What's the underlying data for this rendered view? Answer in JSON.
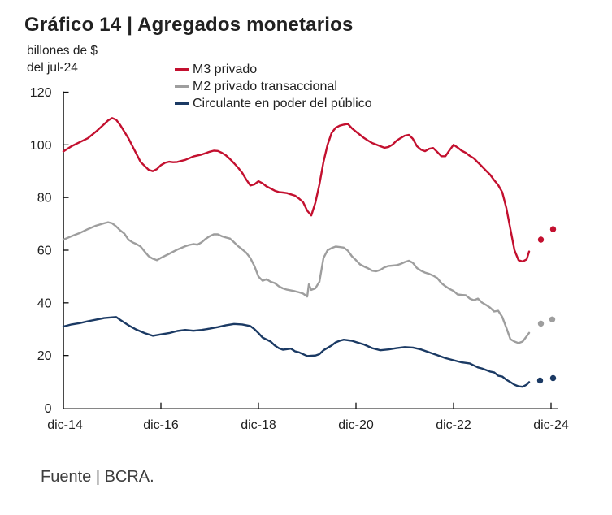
{
  "chart_data": {
    "type": "line",
    "title": "Gráfico 14 | Agregados monetarios",
    "unit_line1": "billones de $",
    "unit_line2": "del jul-24",
    "source": "Fuente | BCRA.",
    "grid": "off",
    "legend_position": "top-inside",
    "ylim": [
      0,
      120
    ],
    "y_ticks": [
      0,
      20,
      40,
      60,
      80,
      100,
      120
    ],
    "x_tick_labels": [
      "dic-14",
      "dic-16",
      "dic-18",
      "dic-20",
      "dic-22",
      "dic-24"
    ],
    "x_tick_months": [
      0,
      24,
      48,
      72,
      96,
      120
    ],
    "x_encoding": "x values in points are months elapsed since dic-14 (0 = dic-14, 120 = dic-24); monthly frequency",
    "axis_color": "#0d0d0d",
    "series": [
      {
        "name": "M3 privado",
        "color": "#c3102f",
        "points": [
          [
            0,
            97.5
          ],
          [
            2,
            99.5
          ],
          [
            4,
            101
          ],
          [
            6,
            102.5
          ],
          [
            8,
            105
          ],
          [
            10,
            107.8
          ],
          [
            11,
            109.3
          ],
          [
            12,
            110.2
          ],
          [
            13,
            109.5
          ],
          [
            14,
            107.5
          ],
          [
            15,
            105
          ],
          [
            16,
            102.5
          ],
          [
            17,
            99.5
          ],
          [
            18,
            96.5
          ],
          [
            19,
            93.5
          ],
          [
            20,
            92
          ],
          [
            21,
            90.5
          ],
          [
            22,
            90
          ],
          [
            23,
            90.8
          ],
          [
            24,
            92.3
          ],
          [
            25,
            93.2
          ],
          [
            26,
            93.6
          ],
          [
            27,
            93.4
          ],
          [
            28,
            93.5
          ],
          [
            30,
            94.3
          ],
          [
            32,
            95.6
          ],
          [
            34,
            96.3
          ],
          [
            36,
            97.4
          ],
          [
            37,
            97.8
          ],
          [
            38,
            97.7
          ],
          [
            39,
            97
          ],
          [
            40,
            96
          ],
          [
            41,
            94.6
          ],
          [
            42,
            93
          ],
          [
            43,
            91.3
          ],
          [
            44,
            89.4
          ],
          [
            45,
            86.8
          ],
          [
            46,
            84.6
          ],
          [
            47,
            85
          ],
          [
            48,
            86.2
          ],
          [
            49,
            85.4
          ],
          [
            50,
            84.2
          ],
          [
            51,
            83.4
          ],
          [
            52,
            82.6
          ],
          [
            53,
            82.1
          ],
          [
            54,
            81.9
          ],
          [
            55,
            81.7
          ],
          [
            56,
            81.2
          ],
          [
            57,
            80.7
          ],
          [
            58,
            79.6
          ],
          [
            59,
            78.2
          ],
          [
            60,
            75
          ],
          [
            61,
            73.2
          ],
          [
            62,
            78
          ],
          [
            63,
            85
          ],
          [
            64,
            93.5
          ],
          [
            65,
            100
          ],
          [
            66,
            104.5
          ],
          [
            67,
            106.5
          ],
          [
            68,
            107.3
          ],
          [
            69,
            107.7
          ],
          [
            70,
            108
          ],
          [
            71,
            106.3
          ],
          [
            72,
            105
          ],
          [
            73,
            103.8
          ],
          [
            74,
            102.6
          ],
          [
            75,
            101.6
          ],
          [
            76,
            100.7
          ],
          [
            77,
            100.1
          ],
          [
            78,
            99.5
          ],
          [
            79,
            98.9
          ],
          [
            80,
            99.2
          ],
          [
            81,
            100.1
          ],
          [
            82,
            101.6
          ],
          [
            83,
            102.6
          ],
          [
            84,
            103.5
          ],
          [
            85,
            103.8
          ],
          [
            86,
            102.3
          ],
          [
            87,
            99.5
          ],
          [
            88,
            98.2
          ],
          [
            89,
            97.6
          ],
          [
            90,
            98.5
          ],
          [
            91,
            98.8
          ],
          [
            92,
            97.3
          ],
          [
            93,
            95.7
          ],
          [
            94,
            95.7
          ],
          [
            95,
            97.9
          ],
          [
            96,
            100
          ],
          [
            97,
            99
          ],
          [
            98,
            97.8
          ],
          [
            99,
            97
          ],
          [
            100,
            95.8
          ],
          [
            101,
            94.9
          ],
          [
            102,
            93.3
          ],
          [
            103,
            91.8
          ],
          [
            104,
            90.2
          ],
          [
            105,
            88.7
          ],
          [
            106,
            86.6
          ],
          [
            107,
            84.7
          ],
          [
            108,
            82
          ],
          [
            109,
            76
          ],
          [
            110,
            68
          ],
          [
            111,
            60
          ],
          [
            112,
            56.2
          ],
          [
            113,
            55.7
          ],
          [
            114,
            56.5
          ],
          [
            114.6,
            59.5
          ]
        ],
        "forecast_dots": [
          [
            117.5,
            64
          ],
          [
            120.5,
            68
          ]
        ]
      },
      {
        "name": "M2 privado transaccional",
        "color": "#9e9e9e",
        "points": [
          [
            0,
            64
          ],
          [
            2,
            65.3
          ],
          [
            4,
            66.5
          ],
          [
            6,
            68
          ],
          [
            8,
            69.3
          ],
          [
            10,
            70.2
          ],
          [
            11,
            70.6
          ],
          [
            12,
            70.2
          ],
          [
            13,
            69
          ],
          [
            14,
            67.5
          ],
          [
            15,
            66.3
          ],
          [
            16,
            64
          ],
          [
            17,
            63
          ],
          [
            18,
            62.3
          ],
          [
            19,
            61.4
          ],
          [
            20,
            59.5
          ],
          [
            21,
            57.7
          ],
          [
            22,
            56.8
          ],
          [
            23,
            56.2
          ],
          [
            24,
            57.1
          ],
          [
            26,
            58.6
          ],
          [
            28,
            60.2
          ],
          [
            30,
            61.5
          ],
          [
            31,
            62
          ],
          [
            32,
            62.3
          ],
          [
            33,
            62.1
          ],
          [
            34,
            63
          ],
          [
            35,
            64.3
          ],
          [
            36,
            65.3
          ],
          [
            37,
            66
          ],
          [
            38,
            66
          ],
          [
            39,
            65.3
          ],
          [
            40,
            64.8
          ],
          [
            41,
            64.4
          ],
          [
            42,
            63
          ],
          [
            43,
            61.5
          ],
          [
            44,
            60.3
          ],
          [
            45,
            59
          ],
          [
            46,
            57
          ],
          [
            47,
            54
          ],
          [
            48,
            50
          ],
          [
            49,
            48.4
          ],
          [
            50,
            49
          ],
          [
            51,
            48
          ],
          [
            52,
            47.5
          ],
          [
            53,
            46.3
          ],
          [
            54,
            45.5
          ],
          [
            55,
            45
          ],
          [
            56,
            44.7
          ],
          [
            57,
            44.4
          ],
          [
            58,
            44
          ],
          [
            59,
            43.5
          ],
          [
            60,
            42.4
          ],
          [
            60.4,
            47
          ],
          [
            61,
            44.9
          ],
          [
            62,
            45.5
          ],
          [
            63,
            48
          ],
          [
            64,
            57
          ],
          [
            65,
            60
          ],
          [
            66,
            60.8
          ],
          [
            67,
            61.4
          ],
          [
            68,
            61.2
          ],
          [
            69,
            61
          ],
          [
            70,
            59.8
          ],
          [
            71,
            57.7
          ],
          [
            72,
            56.2
          ],
          [
            73,
            54.6
          ],
          [
            74,
            53.8
          ],
          [
            75,
            53.1
          ],
          [
            76,
            52.2
          ],
          [
            77,
            52
          ],
          [
            78,
            52.5
          ],
          [
            79,
            53.5
          ],
          [
            80,
            54
          ],
          [
            82,
            54.3
          ],
          [
            83,
            54.8
          ],
          [
            84,
            55.5
          ],
          [
            85,
            56
          ],
          [
            86,
            55.2
          ],
          [
            87,
            53.2
          ],
          [
            88,
            52.2
          ],
          [
            89,
            51.5
          ],
          [
            90,
            51
          ],
          [
            91,
            50.3
          ],
          [
            92,
            49.4
          ],
          [
            93,
            47.5
          ],
          [
            94,
            46.3
          ],
          [
            95,
            45.3
          ],
          [
            96,
            44.5
          ],
          [
            97,
            43.2
          ],
          [
            98,
            43
          ],
          [
            99,
            42.9
          ],
          [
            100,
            41.6
          ],
          [
            101,
            41
          ],
          [
            102,
            41.6
          ],
          [
            103,
            40.1
          ],
          [
            104,
            39.2
          ],
          [
            105,
            38.2
          ],
          [
            106,
            36.7
          ],
          [
            107,
            37
          ],
          [
            108,
            34.6
          ],
          [
            109,
            30.5
          ],
          [
            110,
            26.2
          ],
          [
            111,
            25.3
          ],
          [
            112,
            24.7
          ],
          [
            113,
            25.3
          ],
          [
            114,
            27.3
          ],
          [
            114.6,
            28.6
          ]
        ],
        "forecast_dots": [
          [
            117.5,
            32.1
          ],
          [
            120.3,
            33.7
          ]
        ]
      },
      {
        "name": "Circulante en poder del público",
        "color": "#1b3a64",
        "points": [
          [
            0,
            31
          ],
          [
            2,
            31.8
          ],
          [
            4,
            32.3
          ],
          [
            6,
            33
          ],
          [
            8,
            33.6
          ],
          [
            10,
            34.2
          ],
          [
            12,
            34.5
          ],
          [
            13,
            34.6
          ],
          [
            14,
            33.5
          ],
          [
            16,
            31.5
          ],
          [
            18,
            29.8
          ],
          [
            20,
            28.5
          ],
          [
            22,
            27.5
          ],
          [
            24,
            28
          ],
          [
            26,
            28.5
          ],
          [
            28,
            29.3
          ],
          [
            30,
            29.7
          ],
          [
            32,
            29.4
          ],
          [
            34,
            29.7
          ],
          [
            36,
            30.2
          ],
          [
            38,
            30.8
          ],
          [
            40,
            31.5
          ],
          [
            42,
            32
          ],
          [
            44,
            31.8
          ],
          [
            46,
            31.2
          ],
          [
            47,
            30
          ],
          [
            48,
            28.5
          ],
          [
            49,
            26.8
          ],
          [
            51,
            25.3
          ],
          [
            52,
            23.8
          ],
          [
            53,
            22.8
          ],
          [
            54,
            22.2
          ],
          [
            56,
            22.6
          ],
          [
            57,
            21.6
          ],
          [
            58,
            21.2
          ],
          [
            60,
            19.8
          ],
          [
            62,
            20
          ],
          [
            63,
            20.5
          ],
          [
            64,
            22
          ],
          [
            66,
            23.8
          ],
          [
            67,
            25
          ],
          [
            68,
            25.6
          ],
          [
            69,
            26
          ],
          [
            71,
            25.6
          ],
          [
            72,
            25.1
          ],
          [
            74,
            24.2
          ],
          [
            76,
            22.8
          ],
          [
            78,
            22
          ],
          [
            80,
            22.3
          ],
          [
            82,
            22.8
          ],
          [
            84,
            23.2
          ],
          [
            86,
            23
          ],
          [
            88,
            22.3
          ],
          [
            90,
            21.2
          ],
          [
            92,
            20.1
          ],
          [
            94,
            19
          ],
          [
            96,
            18.2
          ],
          [
            98,
            17.4
          ],
          [
            100,
            17
          ],
          [
            102,
            15.5
          ],
          [
            103,
            15.1
          ],
          [
            105,
            13.9
          ],
          [
            106,
            13.6
          ],
          [
            107,
            12.3
          ],
          [
            108,
            12
          ],
          [
            109,
            10.8
          ],
          [
            110,
            9.9
          ],
          [
            111,
            8.9
          ],
          [
            112,
            8.3
          ],
          [
            113,
            8.1
          ],
          [
            114,
            8.9
          ],
          [
            114.6,
            9.9
          ]
        ],
        "forecast_dots": [
          [
            117.3,
            10.5
          ],
          [
            120.5,
            11.4
          ]
        ]
      }
    ]
  }
}
